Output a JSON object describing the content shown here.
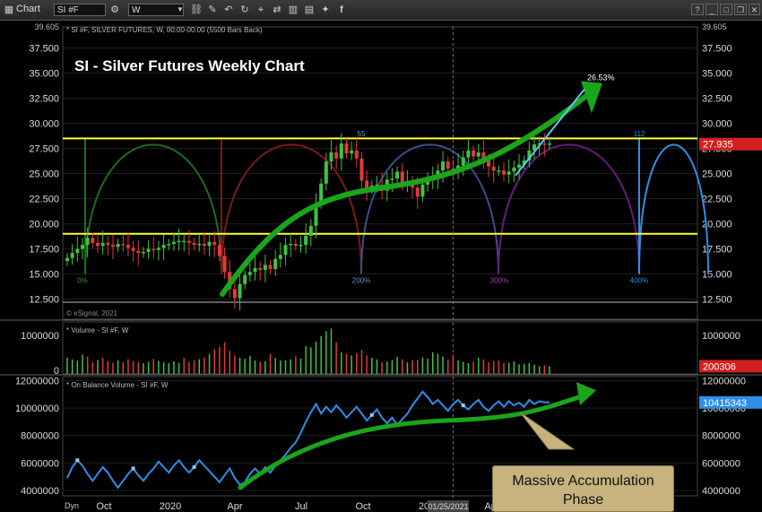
{
  "toolbar": {
    "title": "Chart",
    "symbol": "SI #F",
    "interval": "W"
  },
  "chart_data": [
    {
      "type": "candlestick",
      "title": "SI - Silver Futures Weekly Chart",
      "header": "* SI #F, SILVER FUTURES, W, 00:00-00:00 (5500 Bars Back)",
      "y_ticks": [
        "12.500",
        "15.000",
        "17.500",
        "20.000",
        "22.500",
        "25.000",
        "27.500",
        "30.000",
        "32.500",
        "35.000",
        "37.500"
      ],
      "y_top_label": "39.605",
      "ylim": [
        10.5,
        39.6
      ],
      "last_price": "27.935",
      "horizontal_lines": [
        28.5,
        19.0
      ],
      "trend_label": "26.53%",
      "cycle_labels": [
        "0%",
        "200%",
        "300%",
        "400%"
      ],
      "cycle_top_labels": [
        "55",
        "112"
      ],
      "copyright": "© eSignal, 2021",
      "close": [
        16.6,
        17.1,
        17.5,
        17.9,
        18.6,
        18.1,
        17.8,
        18.1,
        17.9,
        17.7,
        18.0,
        17.9,
        17.6,
        17.3,
        17.1,
        17.2,
        17.5,
        17.4,
        17.6,
        17.9,
        18.0,
        18.2,
        18.3,
        18.3,
        18.1,
        17.9,
        18.0,
        17.8,
        18.2,
        17.9,
        16.8,
        15.2,
        13.5,
        12.6,
        14.0,
        14.9,
        15.2,
        15.6,
        15.4,
        15.9,
        15.5,
        16.5,
        16.9,
        17.9,
        18.0,
        17.8,
        17.9,
        18.8,
        19.8,
        22.0,
        24.0,
        26.2,
        27.1,
        26.5,
        28.0,
        27.0,
        27.3,
        26.5,
        24.3,
        23.5,
        23.8,
        23.9,
        23.3,
        24.4,
        24.5,
        25.2,
        24.0,
        24.1,
        23.6,
        22.7,
        23.9,
        24.3,
        24.5,
        25.3,
        26.2,
        25.5,
        25.3,
        25.8,
        26.6,
        27.3,
        26.7,
        27.1,
        26.3,
        25.7,
        25.3,
        25.3,
        24.9,
        25.2,
        25.6,
        25.9,
        26.3,
        27.3,
        27.9,
        28.0,
        27.9,
        28.0
      ]
    },
    {
      "type": "bar",
      "title": "* Volume - SI #F, W",
      "y_ticks": [
        "1000000"
      ],
      "y_bottom_label": "0",
      "ylim": [
        0,
        1350000
      ],
      "last_value": "200306",
      "values": [
        420000,
        380000,
        350000,
        500000,
        450000,
        300000,
        360000,
        420000,
        330000,
        290000,
        350000,
        310000,
        380000,
        330000,
        300000,
        280000,
        310000,
        390000,
        340000,
        300000,
        280000,
        330000,
        290000,
        410000,
        310000,
        350000,
        380000,
        420000,
        520000,
        640000,
        700000,
        820000,
        600000,
        480000,
        420000,
        390000,
        470000,
        350000,
        310000,
        330000,
        520000,
        410000,
        350000,
        360000,
        380000,
        460000,
        400000,
        720000,
        690000,
        840000,
        980000,
        1110000,
        1180000,
        820000,
        560000,
        520000,
        480000,
        540000,
        620000,
        480000,
        420000,
        380000,
        300000,
        320000,
        360000,
        440000,
        380000,
        300000,
        350000,
        360000,
        430000,
        400000,
        560000,
        520000,
        450000,
        370000,
        490000,
        350000,
        310000,
        280000,
        320000,
        420000,
        380000,
        300000,
        330000,
        350000,
        280000,
        290000,
        320000,
        250000,
        260000,
        280000,
        240000,
        200000,
        220000,
        200306
      ],
      "up": [
        1,
        1,
        1,
        1,
        0,
        0,
        1,
        0,
        0,
        0,
        1,
        0,
        0,
        0,
        0,
        1,
        1,
        0,
        1,
        1,
        1,
        1,
        1,
        0,
        0,
        0,
        1,
        0,
        1,
        0,
        0,
        0,
        0,
        0,
        1,
        1,
        1,
        1,
        0,
        1,
        0,
        1,
        1,
        1,
        1,
        0,
        1,
        1,
        1,
        1,
        1,
        1,
        1,
        0,
        1,
        0,
        1,
        0,
        0,
        0,
        1,
        1,
        0,
        1,
        1,
        1,
        0,
        1,
        0,
        0,
        1,
        1,
        1,
        1,
        1,
        0,
        0,
        1,
        1,
        1,
        0,
        1,
        0,
        0,
        0,
        0,
        0,
        1,
        1,
        1,
        1,
        1,
        1,
        1,
        0,
        1
      ]
    },
    {
      "type": "line",
      "title": "* On Balance Volume - SI #F, W",
      "y_ticks": [
        "4000000",
        "6000000",
        "8000000",
        "10000000",
        "12000000"
      ],
      "ylim": [
        3600000,
        12300000
      ],
      "last_value": "10415343",
      "values": [
        4900000,
        5700000,
        6200000,
        5800000,
        5200000,
        4700000,
        5200000,
        5700000,
        5300000,
        4700000,
        4200000,
        4700000,
        5200000,
        5600000,
        5100000,
        4700000,
        5200000,
        5600000,
        6100000,
        5700000,
        5300000,
        5800000,
        6200000,
        5700000,
        5300000,
        5700000,
        6200000,
        5800000,
        5400000,
        5000000,
        4600000,
        5100000,
        5600000,
        4900000,
        4400000,
        4600000,
        5200000,
        5600000,
        5200000,
        5700000,
        5300000,
        5800000,
        6200000,
        6600000,
        7100000,
        7500000,
        8200000,
        9000000,
        9700000,
        10300000,
        9600000,
        10100000,
        9700000,
        10200000,
        9800000,
        9300000,
        9700000,
        10100000,
        9600000,
        9100000,
        9500000,
        9900000,
        9300000,
        8900000,
        9300000,
        8800000,
        9200000,
        9600000,
        10200000,
        10700000,
        11200000,
        10800000,
        10300000,
        10600000,
        10200000,
        9800000,
        10300000,
        10600000,
        10200000,
        9900000,
        10300000,
        10600000,
        10100000,
        9800000,
        10200000,
        10500000,
        10100000,
        10500000,
        10200000,
        10400000,
        10100000,
        10600000,
        10300000,
        10500000,
        10415343,
        10415343
      ]
    }
  ],
  "x_axis": {
    "labels": [
      "Oct",
      "2020",
      "Apr",
      "Jul",
      "Oct",
      "20",
      "Apr"
    ],
    "cursor_date": "01/25/2021",
    "dyn_label": "Dyn"
  },
  "annotation": {
    "line1": "Massive Accumulation",
    "line2": "Phase"
  },
  "colors": {
    "up": "#3ec43e",
    "down": "#e23a3a",
    "arrow": "#1aa51a",
    "hline": "#ffff33",
    "obv": "#2e8fe6",
    "last_price_bg": "#d41f1f",
    "obv_badge_bg": "#2e8fe6"
  },
  "icons": [
    "settings-icon",
    "link-icon",
    "undo-icon",
    "refresh-icon",
    "cursor-icon",
    "draw-icon",
    "compare-icon",
    "chart-type-icon",
    "screenshot-icon",
    "twitter-icon",
    "facebook-icon"
  ]
}
